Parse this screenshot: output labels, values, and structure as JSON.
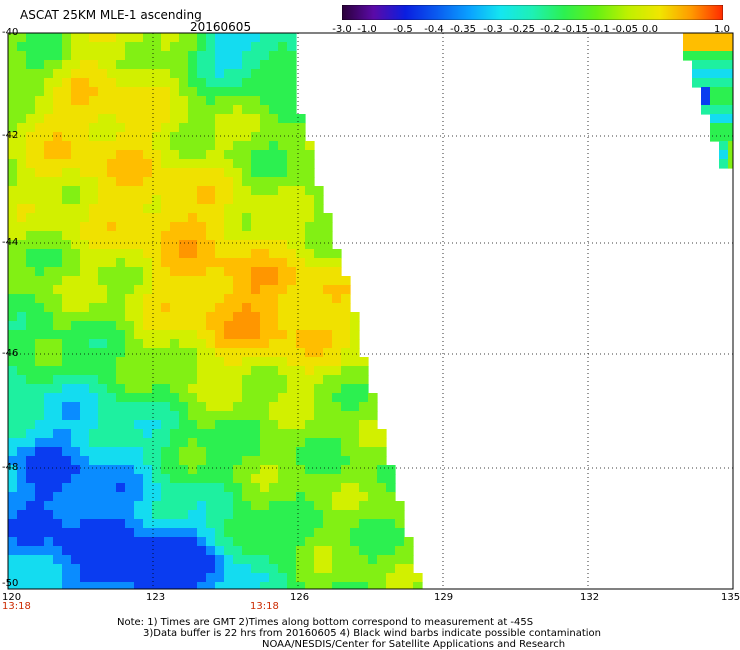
{
  "header": {
    "title": "ASCAT 25KM MLE-1 ascending",
    "date": "20160605"
  },
  "colorbar": {
    "labels": [
      "-3.0",
      "-1.0",
      "-0.5",
      "-0.4",
      "-0.35",
      "-0.3",
      "-0.25",
      "-0.2",
      "-0.15",
      "-0.1",
      "-0.05",
      "0.0",
      "1.0"
    ],
    "colors": [
      "#2a0038",
      "#5b0aa8",
      "#0a1ee0",
      "#0a5cf0",
      "#0aa0ff",
      "#14e6f0",
      "#1ef0b4",
      "#2cf050",
      "#64f014",
      "#bef000",
      "#f0e600",
      "#ff9a00",
      "#ff2a00"
    ]
  },
  "map": {
    "y_labels": [
      "-40",
      "-42",
      "-44",
      "-46",
      "-48",
      "-50"
    ],
    "x_labels": [
      "120",
      "123",
      "126",
      "129",
      "132",
      "135"
    ],
    "time_labels": [
      "13:18",
      "13:18"
    ]
  },
  "notes": {
    "line1": "Note: 1) Times are GMT 2)Times along bottom correspond to measurement at -45S",
    "line2": "3)Data buffer is 22 hrs from 20160605 4) Black wind barbs indicate possible contamination",
    "line3": "NOAA/NESDIS/Center for Satellite Applications and Research"
  }
}
